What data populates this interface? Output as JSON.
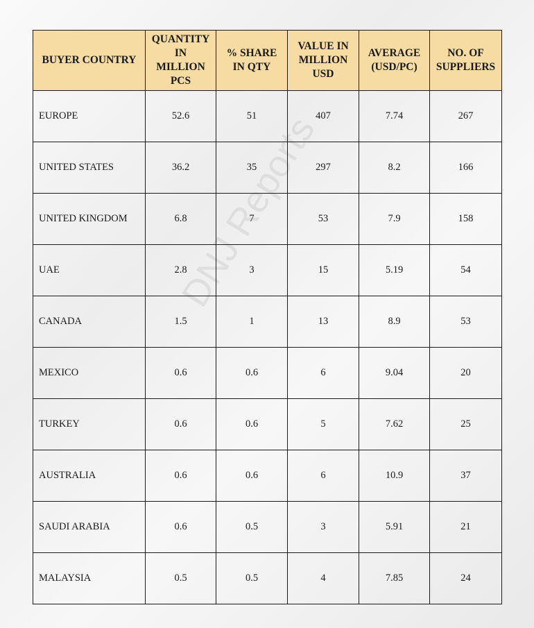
{
  "watermark": "DNJ Reports",
  "table": {
    "columns": [
      "BUYER COUNTRY",
      "QUANTITY IN MILLION PCS",
      "% SHARE IN QTY",
      "VALUE IN MILLION USD",
      "AVERAGE (USD/PC)",
      "NO. OF SUPPLIERS"
    ],
    "rows": [
      [
        "EUROPE",
        "52.6",
        "51",
        "407",
        "7.74",
        "267"
      ],
      [
        "UNITED STATES",
        "36.2",
        "35",
        "297",
        "8.2",
        "166"
      ],
      [
        "UNITED KINGDOM",
        "6.8",
        "7",
        "53",
        "7.9",
        "158"
      ],
      [
        "UAE",
        "2.8",
        "3",
        "15",
        "5.19",
        "54"
      ],
      [
        "CANADA",
        "1.5",
        "1",
        "13",
        "8.9",
        "53"
      ],
      [
        "MEXICO",
        "0.6",
        "0.6",
        "6",
        "9.04",
        "20"
      ],
      [
        "TURKEY",
        "0.6",
        "0.6",
        "5",
        "7.62",
        "25"
      ],
      [
        "AUSTRALIA",
        "0.6",
        "0.6",
        "6",
        "10.9",
        "37"
      ],
      [
        "SAUDI ARABIA",
        "0.6",
        "0.5",
        "3",
        "5.91",
        "21"
      ],
      [
        "MALAYSIA",
        "0.5",
        "0.5",
        "4",
        "7.85",
        "24"
      ]
    ]
  }
}
